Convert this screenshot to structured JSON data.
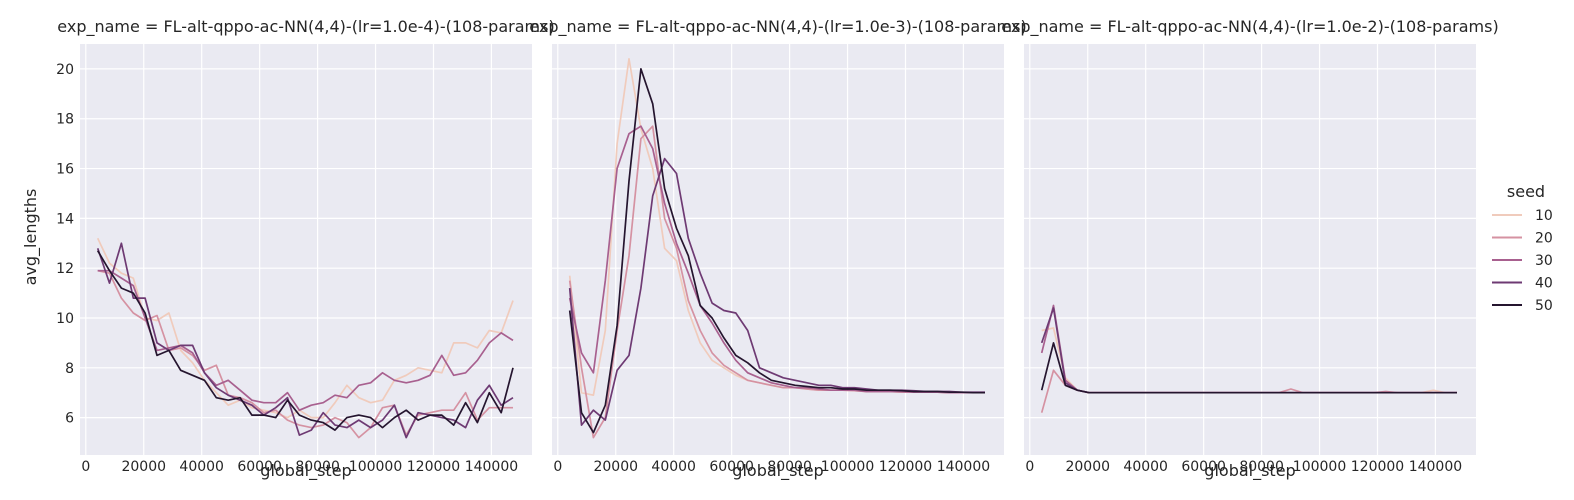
{
  "figure": {
    "ylabel": "avg_lengths",
    "legend": {
      "title": "seed",
      "placement": "right",
      "entries": [
        "10",
        "20",
        "30",
        "40",
        "50"
      ]
    }
  },
  "colors": {
    "background": "#ffffff",
    "panel": "#eaeaf2",
    "grid": "#ffffff",
    "text": "#262626",
    "seeds": [
      "#f0cbbc",
      "#d592a2",
      "#a8608f",
      "#6e3a73",
      "#25152f"
    ]
  },
  "chart_data": [
    {
      "type": "line",
      "title": "exp_name = FL-alt-qppo-ac-NN(4,4)-(lr=1.0e-4)-(108-params)",
      "xlabel": "global_step",
      "ylabel": "avg_lengths",
      "xlim": [
        -2000,
        154000
      ],
      "ylim": [
        4.5,
        21
      ],
      "xticks": [
        0,
        20000,
        40000,
        60000,
        80000,
        100000,
        120000,
        140000
      ],
      "yticks": [
        6,
        8,
        10,
        12,
        14,
        16,
        18,
        20
      ],
      "grid": true,
      "x": [
        4096,
        8192,
        12288,
        16384,
        20480,
        24576,
        28672,
        32768,
        36864,
        40960,
        45056,
        49152,
        53248,
        57344,
        61440,
        65536,
        69632,
        73728,
        77824,
        81920,
        86016,
        90112,
        94208,
        98304,
        102400,
        106496,
        110592,
        114688,
        118784,
        122880,
        126976,
        131072,
        135168,
        139264,
        143360,
        147456
      ],
      "series": [
        {
          "name": "10",
          "values": [
            13.2,
            12.2,
            11.8,
            11.6,
            10.0,
            9.9,
            10.2,
            8.7,
            8.2,
            7.5,
            7.0,
            6.5,
            6.7,
            6.4,
            6.3,
            6.2,
            6.0,
            6.3,
            6.0,
            6.0,
            6.6,
            7.3,
            6.8,
            6.6,
            6.7,
            7.5,
            7.7,
            8.0,
            7.9,
            7.8,
            9.0,
            9.0,
            8.8,
            9.5,
            9.4,
            10.7
          ]
        },
        {
          "name": "20",
          "values": [
            11.9,
            11.8,
            10.8,
            10.2,
            9.9,
            10.1,
            8.7,
            8.8,
            8.5,
            7.9,
            8.1,
            6.9,
            6.8,
            6.6,
            6.2,
            6.3,
            5.9,
            5.7,
            5.6,
            5.7,
            6.0,
            5.8,
            5.2,
            5.6,
            6.4,
            6.5,
            5.3,
            6.1,
            6.2,
            6.3,
            6.3,
            7.0,
            5.9,
            6.4,
            6.4,
            6.4
          ]
        },
        {
          "name": "30",
          "values": [
            11.9,
            11.9,
            11.6,
            11.3,
            10.0,
            8.7,
            8.8,
            8.9,
            8.6,
            7.8,
            7.3,
            7.5,
            7.1,
            6.7,
            6.6,
            6.6,
            7.0,
            6.3,
            6.5,
            6.6,
            6.9,
            6.8,
            7.3,
            7.4,
            7.8,
            7.5,
            7.4,
            7.5,
            7.7,
            8.5,
            7.7,
            7.8,
            8.3,
            9.0,
            9.4,
            9.1
          ]
        },
        {
          "name": "40",
          "values": [
            12.8,
            11.4,
            13.0,
            10.8,
            10.8,
            9.0,
            8.7,
            8.9,
            8.9,
            7.8,
            7.2,
            6.9,
            6.7,
            6.5,
            6.1,
            6.4,
            6.8,
            5.3,
            5.5,
            6.2,
            5.7,
            5.6,
            5.9,
            5.6,
            5.9,
            6.5,
            5.2,
            6.2,
            6.1,
            6.0,
            5.9,
            5.6,
            6.7,
            7.3,
            6.5,
            6.8
          ]
        },
        {
          "name": "50",
          "values": [
            12.7,
            11.9,
            11.2,
            11.0,
            10.2,
            8.5,
            8.7,
            7.9,
            7.7,
            7.5,
            6.8,
            6.7,
            6.8,
            6.1,
            6.1,
            6.0,
            6.7,
            6.1,
            5.9,
            5.8,
            5.5,
            6.0,
            6.1,
            6.0,
            5.6,
            6.0,
            6.3,
            5.9,
            6.1,
            6.1,
            5.7,
            6.6,
            5.8,
            7.0,
            6.2,
            8.0
          ]
        }
      ]
    },
    {
      "type": "line",
      "title": "exp_name = FL-alt-qppo-ac-NN(4,4)-(lr=1.0e-3)-(108-params)",
      "xlabel": "global_step",
      "ylabel": "",
      "xlim": [
        -2000,
        154000
      ],
      "ylim": [
        4.5,
        21
      ],
      "xticks": [
        0,
        20000,
        40000,
        60000,
        80000,
        100000,
        120000,
        140000
      ],
      "yticks": [
        6,
        8,
        10,
        12,
        14,
        16,
        18,
        20
      ],
      "grid": true,
      "x": [
        4096,
        8192,
        12288,
        16384,
        20480,
        24576,
        28672,
        32768,
        36864,
        40960,
        45056,
        49152,
        53248,
        57344,
        61440,
        65536,
        69632,
        73728,
        77824,
        81920,
        86016,
        90112,
        94208,
        98304,
        102400,
        106496,
        110592,
        114688,
        118784,
        122880,
        126976,
        131072,
        135168,
        139264,
        143360,
        147456
      ],
      "series": [
        {
          "name": "10",
          "values": [
            11.7,
            7.0,
            6.9,
            9.5,
            17.0,
            20.4,
            17.6,
            16.0,
            12.8,
            12.3,
            10.3,
            9.0,
            8.3,
            8.0,
            7.7,
            7.5,
            7.4,
            7.3,
            7.2,
            7.2,
            7.15,
            7.1,
            7.1,
            7.1,
            7.08,
            7.05,
            7.05,
            7.05,
            7.02,
            7.02,
            7.02,
            7.02,
            7.0,
            7.0,
            7.0,
            7.0
          ]
        },
        {
          "name": "20",
          "values": [
            11.5,
            8.0,
            5.2,
            6.0,
            9.5,
            12.5,
            17.2,
            17.7,
            14.0,
            12.8,
            10.7,
            9.5,
            8.6,
            8.1,
            7.8,
            7.5,
            7.4,
            7.3,
            7.2,
            7.2,
            7.15,
            7.1,
            7.1,
            7.1,
            7.08,
            7.05,
            7.05,
            7.05,
            7.02,
            7.02,
            7.02,
            7.02,
            7.0,
            7.0,
            7.0,
            7.0
          ]
        },
        {
          "name": "30",
          "values": [
            10.8,
            8.6,
            7.8,
            11.5,
            16.0,
            17.4,
            17.7,
            16.8,
            14.6,
            13.0,
            11.8,
            10.5,
            9.8,
            9.0,
            8.3,
            7.8,
            7.6,
            7.4,
            7.3,
            7.2,
            7.2,
            7.15,
            7.1,
            7.1,
            7.1,
            7.05,
            7.05,
            7.05,
            7.05,
            7.02,
            7.02,
            7.02,
            7.0,
            7.0,
            7.0,
            7.0
          ]
        },
        {
          "name": "40",
          "values": [
            11.2,
            5.7,
            6.3,
            5.9,
            7.9,
            8.5,
            11.2,
            14.9,
            16.4,
            15.8,
            13.2,
            11.8,
            10.6,
            10.3,
            10.2,
            9.5,
            8.0,
            7.8,
            7.6,
            7.5,
            7.4,
            7.3,
            7.3,
            7.2,
            7.2,
            7.15,
            7.1,
            7.1,
            7.1,
            7.08,
            7.05,
            7.05,
            7.05,
            7.02,
            7.02,
            7.02
          ]
        },
        {
          "name": "50",
          "values": [
            10.3,
            6.2,
            5.4,
            6.5,
            9.7,
            15.5,
            20.0,
            18.6,
            15.2,
            13.6,
            12.5,
            10.5,
            10.0,
            9.2,
            8.5,
            8.2,
            7.8,
            7.5,
            7.4,
            7.3,
            7.25,
            7.2,
            7.2,
            7.15,
            7.15,
            7.1,
            7.1,
            7.1,
            7.08,
            7.05,
            7.05,
            7.05,
            7.02,
            7.02,
            7.0,
            7.0
          ]
        }
      ]
    },
    {
      "type": "line",
      "title": "exp_name = FL-alt-qppo-ac-NN(4,4)-(lr=1.0e-2)-(108-params)",
      "xlabel": "global_step",
      "ylabel": "",
      "xlim": [
        -2000,
        154000
      ],
      "ylim": [
        4.5,
        21
      ],
      "xticks": [
        0,
        20000,
        40000,
        60000,
        80000,
        100000,
        120000,
        140000
      ],
      "yticks": [
        6,
        8,
        10,
        12,
        14,
        16,
        18,
        20
      ],
      "grid": true,
      "x": [
        4096,
        8192,
        12288,
        16384,
        20480,
        24576,
        28672,
        32768,
        36864,
        40960,
        45056,
        49152,
        53248,
        57344,
        61440,
        65536,
        69632,
        73728,
        77824,
        81920,
        86016,
        90112,
        94208,
        98304,
        102400,
        106496,
        110592,
        114688,
        118784,
        122880,
        126976,
        131072,
        135168,
        139264,
        143360,
        147456
      ],
      "series": [
        {
          "name": "10",
          "values": [
            9.5,
            9.6,
            7.6,
            7.1,
            7.0,
            7.0,
            7.0,
            7.0,
            7.0,
            7.0,
            7.0,
            7.0,
            7.0,
            7.0,
            7.0,
            7.0,
            7.0,
            7.0,
            7.0,
            7.0,
            7.0,
            7.0,
            7.0,
            7.0,
            7.0,
            7.0,
            7.0,
            7.0,
            7.0,
            7.0,
            7.0,
            7.0,
            7.0,
            7.1,
            7.0,
            7.0
          ]
        },
        {
          "name": "20",
          "values": [
            6.2,
            7.9,
            7.3,
            7.1,
            7.0,
            7.0,
            7.0,
            7.0,
            7.0,
            7.0,
            7.0,
            7.0,
            7.0,
            7.0,
            7.0,
            7.0,
            7.0,
            7.0,
            7.0,
            7.0,
            7.0,
            7.15,
            7.0,
            7.0,
            7.0,
            7.0,
            7.0,
            7.0,
            7.0,
            7.05,
            7.0,
            7.0,
            7.0,
            7.0,
            7.0,
            7.0
          ]
        },
        {
          "name": "30",
          "values": [
            8.6,
            10.5,
            7.5,
            7.1,
            7.0,
            7.0,
            7.0,
            7.0,
            7.0,
            7.0,
            7.0,
            7.0,
            7.0,
            7.0,
            7.0,
            7.0,
            7.0,
            7.0,
            7.0,
            7.0,
            7.0,
            7.0,
            7.0,
            7.0,
            7.0,
            7.0,
            7.0,
            7.0,
            7.0,
            7.0,
            7.0,
            7.0,
            7.0,
            7.0,
            7.0,
            7.0
          ]
        },
        {
          "name": "40",
          "values": [
            9.0,
            10.4,
            7.4,
            7.1,
            7.0,
            7.0,
            7.0,
            7.0,
            7.0,
            7.0,
            7.0,
            7.0,
            7.0,
            7.0,
            7.0,
            7.0,
            7.0,
            7.0,
            7.0,
            7.0,
            7.0,
            7.0,
            7.0,
            7.0,
            7.0,
            7.0,
            7.0,
            7.0,
            7.0,
            7.0,
            7.0,
            7.0,
            7.0,
            7.0,
            7.0,
            7.0
          ]
        },
        {
          "name": "50",
          "values": [
            7.1,
            9.0,
            7.3,
            7.1,
            7.0,
            7.0,
            7.0,
            7.0,
            7.0,
            7.0,
            7.0,
            7.0,
            7.0,
            7.0,
            7.0,
            7.0,
            7.0,
            7.0,
            7.0,
            7.0,
            7.0,
            7.0,
            7.0,
            7.0,
            7.0,
            7.0,
            7.0,
            7.0,
            7.0,
            7.0,
            7.0,
            7.0,
            7.0,
            7.0,
            7.0,
            7.0
          ]
        }
      ]
    }
  ]
}
